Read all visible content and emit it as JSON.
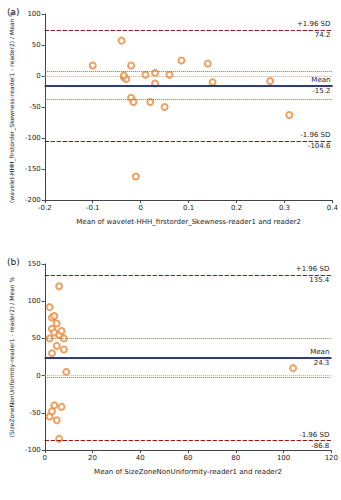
{
  "chart_data": [
    {
      "type": "scatter",
      "panel_label": "(a)",
      "x_label": "Mean of wavelet-HHH_firstorder_Skewness-reader1 and reader2",
      "y_label": "(wavelet-HHH_firstorder_Skewness-reader1 - reader2) / Mean %",
      "x": [
        -0.1,
        -0.04,
        -0.035,
        -0.03,
        -0.035,
        -0.02,
        -0.02,
        -0.015,
        -0.01,
        0.01,
        0.02,
        0.03,
        0.03,
        0.05,
        0.06,
        0.085,
        0.14,
        0.15,
        0.27,
        0.31
      ],
      "values": [
        17,
        57,
        -2,
        -5,
        1,
        17,
        -35,
        -42,
        -162,
        2,
        -42,
        5,
        -12,
        -50,
        2,
        25,
        20,
        -10,
        -8,
        -63
      ],
      "color": "#e8883a",
      "marker": "emptyCircle",
      "xlim": [
        -0.2,
        0.4
      ],
      "xticks": [
        -0.2,
        -0.1,
        0,
        0.1,
        0.2,
        0.3,
        0.4
      ],
      "ylim": [
        -200,
        100
      ],
      "yticks": [
        -200,
        -150,
        -100,
        -50,
        0,
        50,
        100
      ],
      "grid": false,
      "limit_lines": [
        {
          "label": "+1.96 SD",
          "value": 74.2,
          "line_style": "dashed",
          "color": "#8b1a1a"
        },
        {
          "label": "Mean",
          "value": -15.2,
          "line_style": "solid",
          "color": "#1f2f7a"
        },
        {
          "label": "-1.96 SD",
          "value": -104.6,
          "line_style": "dashed",
          "color": "#8b1a1a"
        }
      ],
      "mean_ci": [
        8,
        -37
      ],
      "mean_ci_color": "#6b8e23",
      "equality_line": 0,
      "equality_color": "#d9a75a"
    },
    {
      "type": "scatter",
      "panel_label": "(b)",
      "x_label": "Mean of SizeZoneNonUniformity-reader1 and reader2",
      "y_label": "(SizeZoneNonUniformity-reader1 - reader2) / Mean %",
      "x": [
        2,
        3,
        4,
        5,
        3,
        4,
        6,
        2,
        7,
        8,
        5,
        3,
        8,
        6,
        9,
        2,
        4,
        3,
        5,
        6,
        7,
        104
      ],
      "values": [
        92,
        78,
        80,
        70,
        63,
        58,
        55,
        50,
        60,
        50,
        40,
        30,
        35,
        120,
        5,
        -55,
        -40,
        -48,
        -60,
        -85,
        -42,
        10
      ],
      "color": "#e8883a",
      "marker": "emptyCircle",
      "xlim": [
        0,
        120
      ],
      "xticks": [
        0,
        20,
        40,
        60,
        80,
        100,
        120
      ],
      "ylim": [
        -100,
        150
      ],
      "yticks": [
        -100,
        -50,
        0,
        50,
        100,
        150
      ],
      "grid": false,
      "limit_lines": [
        {
          "label": "+1.96 SD",
          "value": 135.4,
          "line_style": "dashed",
          "color": "#8b1a1a"
        },
        {
          "label": "Mean",
          "value": 24.3,
          "line_style": "solid",
          "color": "#1f2f7a"
        },
        {
          "label": "-1.96 SD",
          "value": -86.8,
          "line_style": "dashed",
          "color": "#8b1a1a"
        }
      ],
      "mean_ci": [
        50,
        -2
      ],
      "mean_ci_color": "#6b8e23",
      "equality_line": 0,
      "equality_color": "#d9a75a"
    }
  ]
}
